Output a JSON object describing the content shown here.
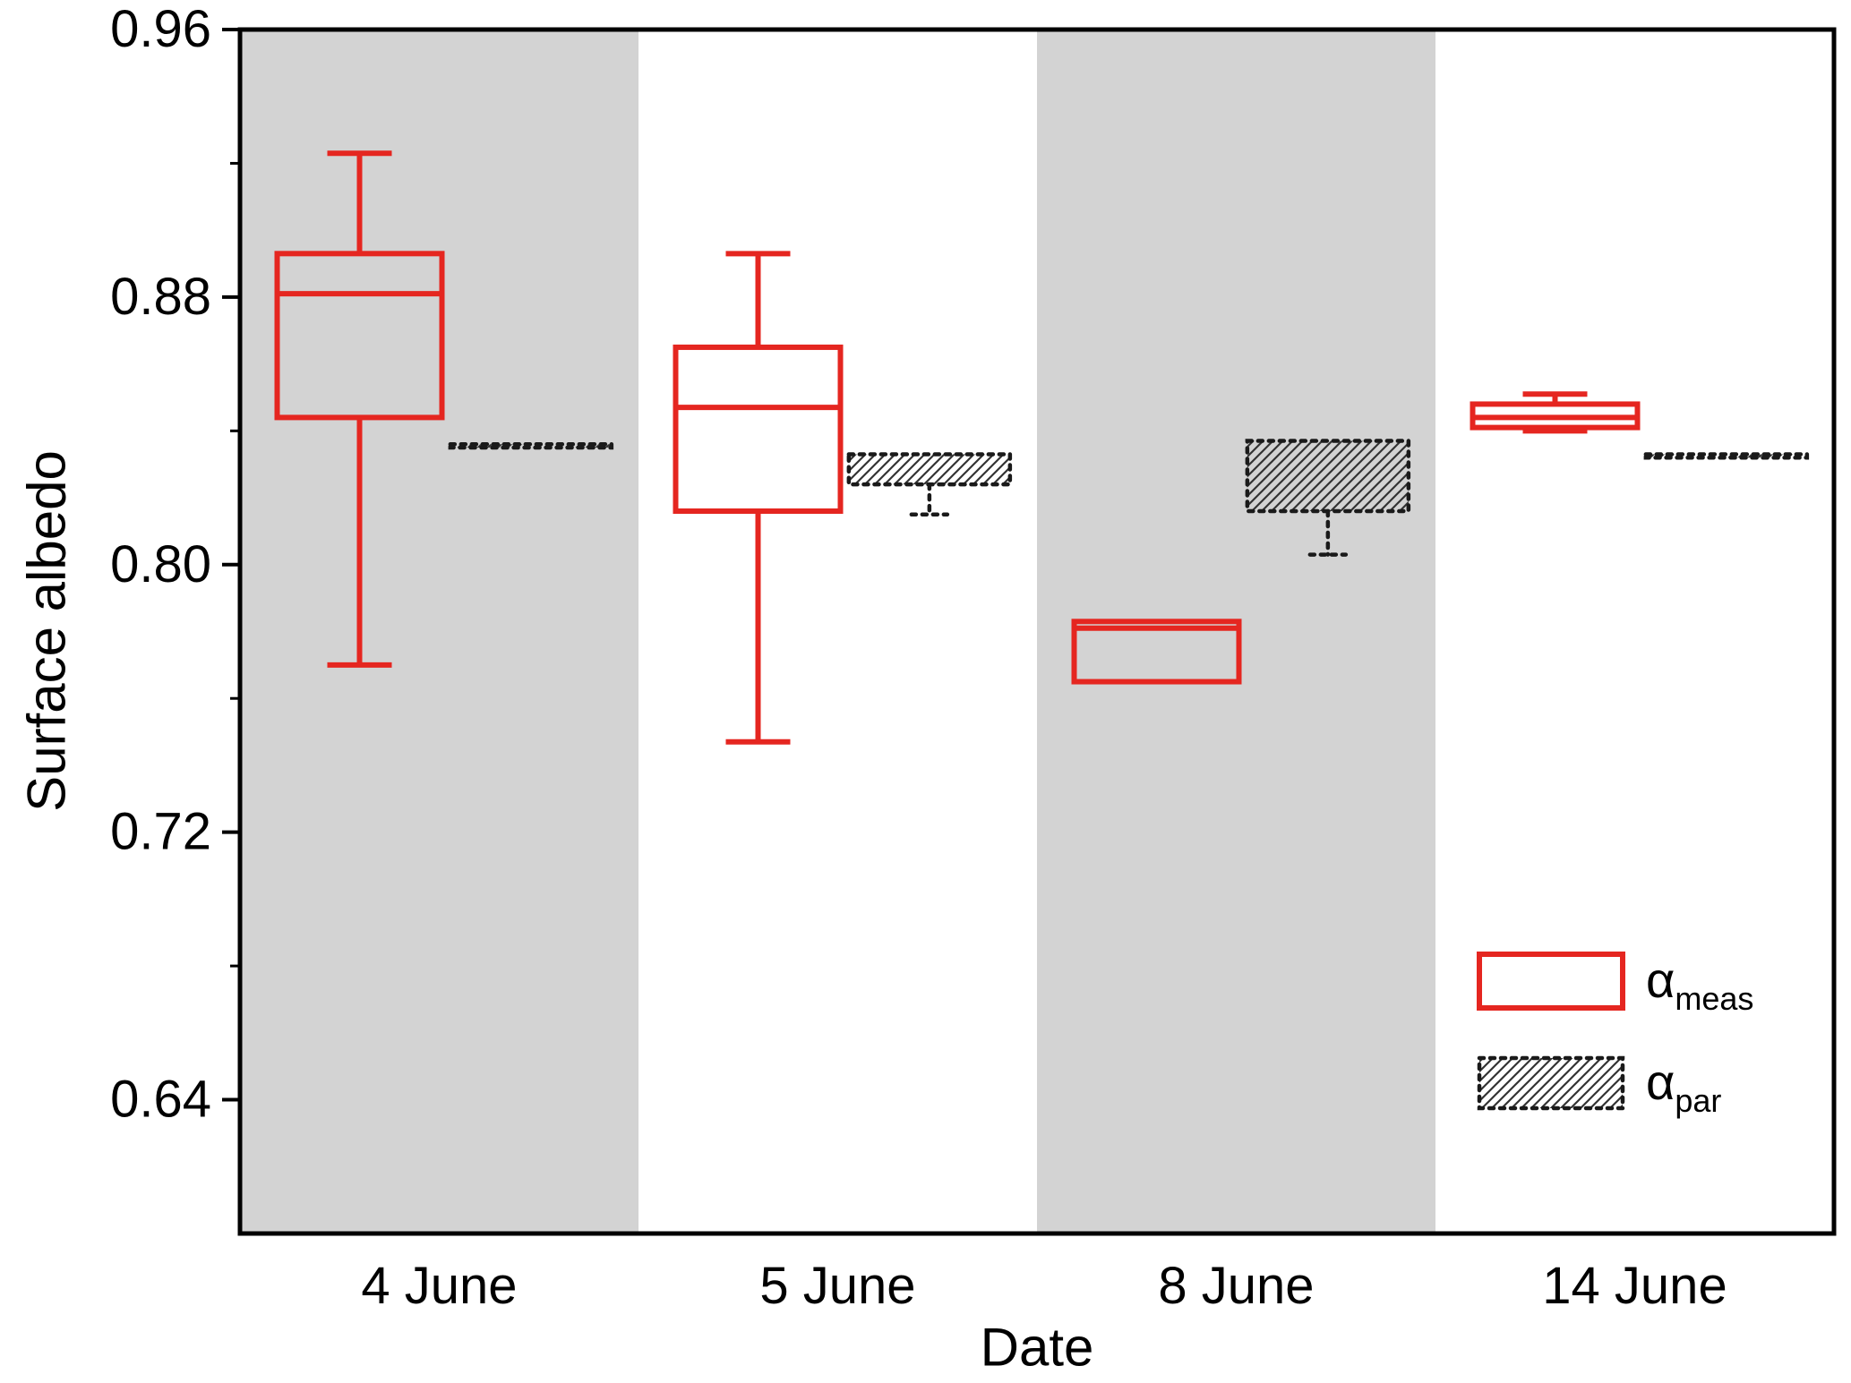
{
  "chart_data": {
    "type": "boxplot",
    "title": "",
    "xlabel": "Date",
    "ylabel": "Surface albedo",
    "ylim": [
      0.6,
      0.96
    ],
    "yticks": [
      0.64,
      0.72,
      0.8,
      0.88,
      0.96
    ],
    "minor_yticks": [
      0.68,
      0.76,
      0.84,
      0.92
    ],
    "categories": [
      "4 June",
      "5 June",
      "8 June",
      "14 June"
    ],
    "band_shading": [
      "gray",
      "white",
      "gray",
      "white"
    ],
    "grid": "off",
    "legend_position": "bottom-right",
    "colors": {
      "meas": "#e52620",
      "par": "#1a1a1a",
      "band_gray": "#d3d3d3",
      "frame": "#000000"
    },
    "series": [
      {
        "key": "meas",
        "label_main": "α",
        "label_sub": "meas",
        "style": "solid-red-box",
        "boxes": [
          {
            "category": "4 June",
            "whisker_low": 0.77,
            "q1": 0.844,
            "median": 0.881,
            "q3": 0.893,
            "whisker_high": 0.923
          },
          {
            "category": "5 June",
            "whisker_low": 0.747,
            "q1": 0.816,
            "median": 0.847,
            "q3": 0.865,
            "whisker_high": 0.893
          },
          {
            "category": "8 June",
            "whisker_low": null,
            "q1": 0.765,
            "median": 0.781,
            "q3": 0.783,
            "whisker_high": null
          },
          {
            "category": "14 June",
            "whisker_low": 0.84,
            "q1": 0.841,
            "median": 0.844,
            "q3": 0.848,
            "whisker_high": 0.851
          }
        ]
      },
      {
        "key": "par",
        "label_main": "α",
        "label_sub": "par",
        "style": "black-dotted-hatched-box",
        "boxes": [
          {
            "category": "4 June",
            "whisker_low": null,
            "q1": 0.835,
            "median": null,
            "q3": 0.836,
            "whisker_high": null
          },
          {
            "category": "5 June",
            "whisker_low": 0.815,
            "q1": 0.824,
            "median": null,
            "q3": 0.833,
            "whisker_high": null
          },
          {
            "category": "8 June",
            "whisker_low": 0.803,
            "q1": 0.816,
            "median": null,
            "q3": 0.837,
            "whisker_high": null
          },
          {
            "category": "14 June",
            "whisker_low": null,
            "q1": 0.832,
            "median": null,
            "q3": 0.833,
            "whisker_high": null
          }
        ]
      }
    ]
  }
}
